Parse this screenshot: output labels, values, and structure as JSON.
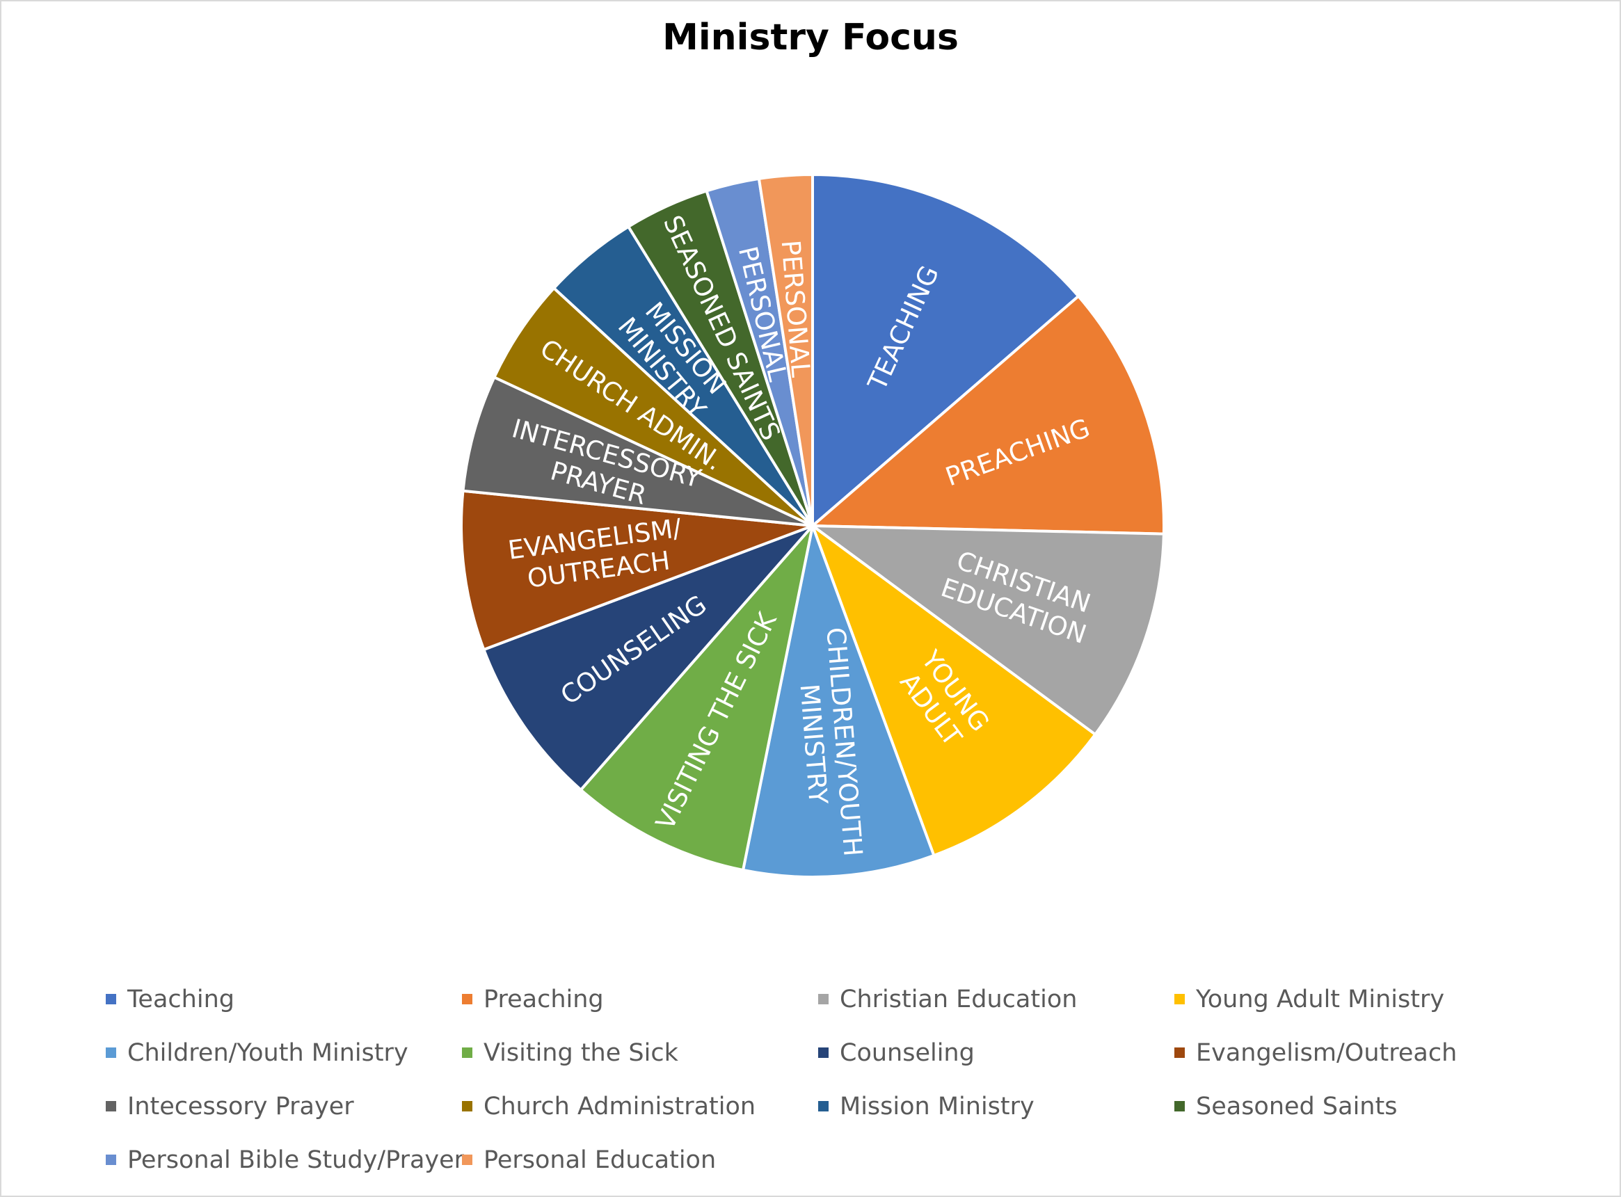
{
  "chart_data": {
    "type": "pie",
    "title": "Ministry Focus",
    "legend_position": "bottom",
    "slices": [
      {
        "name": "Teaching",
        "value": 14.0,
        "label": [
          "TEACHING"
        ],
        "color": "#4472C4"
      },
      {
        "name": "Preaching",
        "value": 12.0,
        "label": [
          "PREACHING"
        ],
        "color": "#ED7D31"
      },
      {
        "name": "Christian Education",
        "value": 10.0,
        "label": [
          "CHRISTIAN",
          "EDUCATION"
        ],
        "color": "#A5A5A5"
      },
      {
        "name": "Young Adult Ministry",
        "value": 9.5,
        "label": [
          "YOUNG",
          "ADULT"
        ],
        "color": "#FFC000"
      },
      {
        "name": "Children/Youth Ministry",
        "value": 9.0,
        "label": [
          "CHILDREN/YOUTH",
          "MINISTRY"
        ],
        "color": "#5B9BD5"
      },
      {
        "name": "Visiting the Sick",
        "value": 8.5,
        "label": [
          "VISITING THE SICK"
        ],
        "color": "#70AD47"
      },
      {
        "name": "Counseling",
        "value": 8.0,
        "label": [
          "COUNSELING"
        ],
        "color": "#264478"
      },
      {
        "name": "Evangelism/Outreach",
        "value": 7.5,
        "label": [
          "EVANGELISM/",
          "OUTREACH"
        ],
        "color": "#9E480E"
      },
      {
        "name": "Intecessory Prayer",
        "value": 5.5,
        "label": [
          "INTERCESSORY",
          "PRAYER"
        ],
        "color": "#636363"
      },
      {
        "name": "Church Administration",
        "value": 5.0,
        "label": [
          "CHURCH ADMIN."
        ],
        "color": "#997300"
      },
      {
        "name": "Mission Ministry",
        "value": 4.5,
        "label": [
          "MISSION",
          "MINISTRY"
        ],
        "color": "#255E91"
      },
      {
        "name": "Seasoned Saints",
        "value": 4.0,
        "label": [
          "SEASONED SAINTS"
        ],
        "color": "#43682B"
      },
      {
        "name": "Personal Bible Study/Prayer",
        "value": 2.5,
        "label": [
          "PERSONAL"
        ],
        "color": "#698ED0"
      },
      {
        "name": "Personal Education",
        "value": 2.5,
        "label": [
          "PERSONAL"
        ],
        "color": "#F1975A"
      }
    ]
  }
}
